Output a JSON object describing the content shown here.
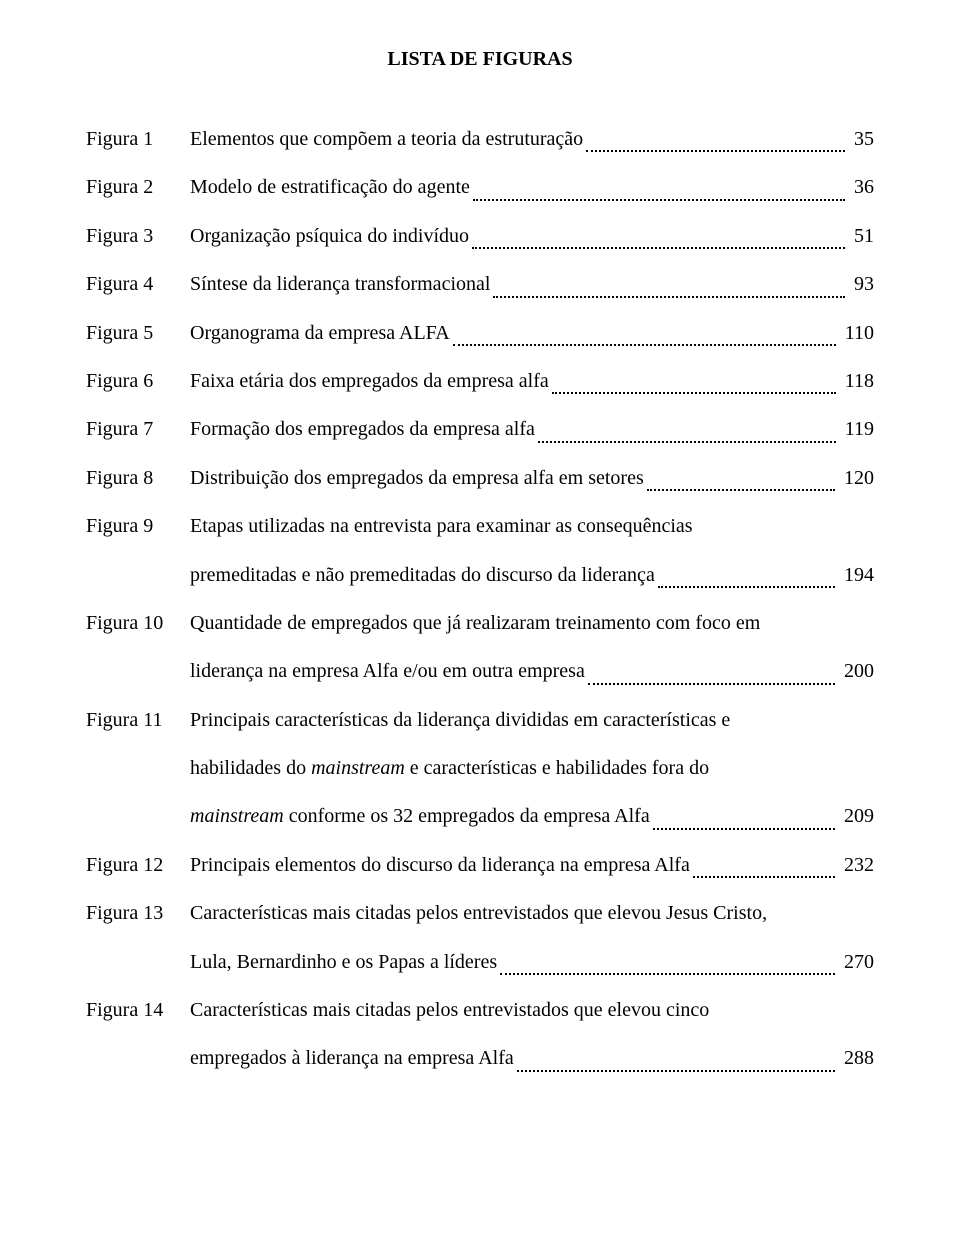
{
  "title": "LISTA DE FIGURAS",
  "font": {
    "family": "Times New Roman",
    "title_size_pt": 20,
    "body_size_pt": 20,
    "line_height": 2.42
  },
  "colors": {
    "text": "#000000",
    "background": "#ffffff",
    "leader_dots": "#000000"
  },
  "entries": [
    {
      "label": "Figura 1",
      "lines": [
        "Elementos que compõem a teoria da estruturação"
      ],
      "page": "35"
    },
    {
      "label": "Figura 2",
      "lines": [
        "Modelo de estratificação do agente"
      ],
      "page": "36"
    },
    {
      "label": "Figura 3",
      "lines": [
        "Organização psíquica do indivíduo"
      ],
      "page": "51"
    },
    {
      "label": "Figura 4",
      "lines": [
        "Síntese da liderança transformacional"
      ],
      "page": "93"
    },
    {
      "label": "Figura 5",
      "lines": [
        "Organograma da empresa ALFA"
      ],
      "page": "110"
    },
    {
      "label": "Figura 6",
      "lines": [
        "Faixa etária dos empregados da empresa alfa"
      ],
      "page": "118"
    },
    {
      "label": "Figura 7",
      "lines": [
        "Formação dos empregados da empresa alfa"
      ],
      "page": "119"
    },
    {
      "label": "Figura 8",
      "lines": [
        "Distribuição dos empregados da empresa alfa em setores"
      ],
      "page": "120"
    },
    {
      "label": "Figura 9",
      "lines": [
        "Etapas  utilizadas  na  entrevista  para  examinar  as  consequências",
        "premeditadas e não premeditadas do discurso da liderança"
      ],
      "page": "194"
    },
    {
      "label": "Figura 10",
      "lines": [
        "Quantidade de empregados que já realizaram treinamento com foco em",
        "liderança na empresa Alfa e/ou em outra empresa"
      ],
      "page": "200"
    },
    {
      "label": "Figura 11",
      "lines": [
        "Principais  características  da  liderança  divididas  em  características  e",
        "habilidades  do  mainstream  e  características  e  habilidades  fora  do",
        "mainstream conforme os 32 empregados da empresa Alfa"
      ],
      "page": "209",
      "italic_ranges": [
        [
          1,
          1
        ],
        [
          2,
          0
        ]
      ]
    },
    {
      "label": "Figura 12",
      "lines": [
        "Principais elementos do discurso da liderança na empresa Alfa"
      ],
      "page": "232"
    },
    {
      "label": "Figura 13",
      "lines": [
        "Características mais citadas pelos entrevistados que elevou Jesus Cristo,",
        "Lula, Bernardinho e os Papas a líderes"
      ],
      "page": "270"
    },
    {
      "label": "Figura 14",
      "lines": [
        "Características  mais  citadas  pelos  entrevistados  que  elevou  cinco",
        "empregados à liderança na empresa Alfa"
      ],
      "page": "288"
    }
  ],
  "special_italics": {
    "10": {
      "0_start": "habilidades  do  ",
      "0_it": "mainstream",
      "0_end": "  e  características  e  habilidades  fora  do",
      "1_it": "mainstream",
      "1_end": " conforme os 32 empregados da empresa Alfa"
    }
  }
}
